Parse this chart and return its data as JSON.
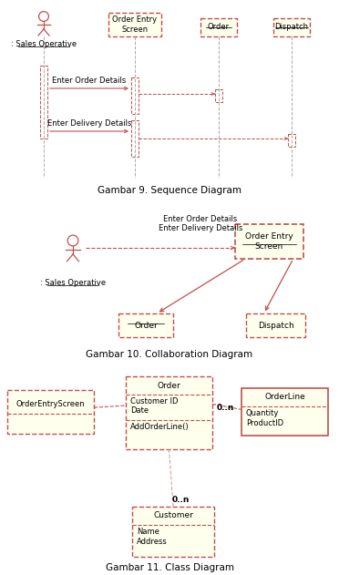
{
  "bg_color": "#ffffff",
  "border_color": "#c0504d",
  "box_fill": "#ffffee",
  "lifeline_color": "#aaaaaa",
  "arrow_color": "#c0504d",
  "actor_color": "#c0504d",
  "text_color": "#000000",
  "fig9_caption": "Gambar 9. Sequence Diagram",
  "fig10_caption": "Gambar 10. Collaboration Diagram",
  "fig11_caption": "Gambar 11. Class Diagram"
}
